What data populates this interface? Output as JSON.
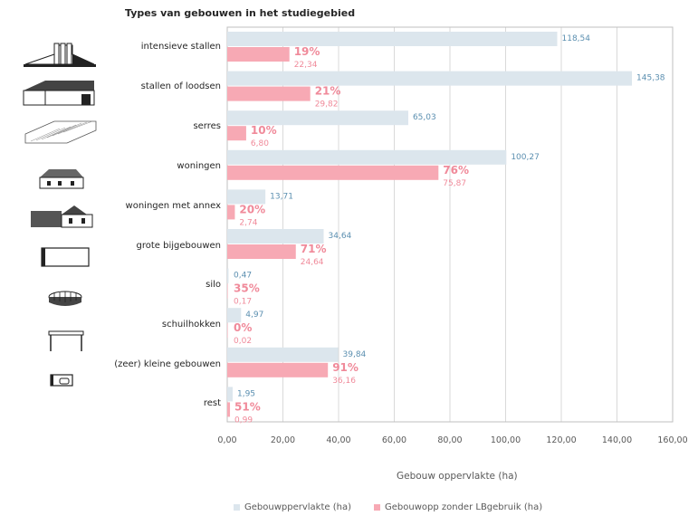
{
  "chart_data": {
    "type": "bar",
    "orientation": "horizontal",
    "title": "Types van gebouwen in het studiegebied",
    "xlabel": "Gebouw oppervlakte (ha)",
    "xlim": [
      0,
      160
    ],
    "xticks": [
      "0,00",
      "20,00",
      "40,00",
      "60,00",
      "80,00",
      "100,00",
      "120,00",
      "140,00",
      "160,00"
    ],
    "grid": true,
    "legend_position": "bottom",
    "categories": [
      "intensieve stallen",
      "stallen of loodsen",
      "serres",
      "woningen",
      "woningen met annex",
      "grote bijgebouwen",
      "silo",
      "schuilhokken",
      "(zeer) kleine gebouwen",
      "rest"
    ],
    "series": [
      {
        "name": "Gebouwppervlakte (ha)",
        "color": "#dce6ed",
        "label_color": "#5b8fb0",
        "values": [
          118.54,
          145.38,
          65.03,
          100.27,
          13.71,
          34.64,
          0.47,
          4.97,
          39.84,
          1.95
        ],
        "labels": [
          "118,54",
          "145,38",
          "65,03",
          "100,27",
          "13,71",
          "34,64",
          "0,47",
          "4,97",
          "39,84",
          "1,95"
        ]
      },
      {
        "name": "Gebouwopp zonder LBgebruik (ha)",
        "color": "#f7a9b4",
        "label_color": "#f08a9a",
        "values": [
          22.34,
          29.82,
          6.8,
          75.87,
          2.74,
          24.64,
          0.17,
          0.02,
          36.16,
          0.99
        ],
        "labels": [
          "22,34",
          "29,82",
          "6,80",
          "75,87",
          "2,74",
          "24,64",
          "0,17",
          "0,02",
          "36,16",
          "0,99"
        ]
      }
    ],
    "percentages": [
      "19%",
      "21%",
      "10%",
      "76%",
      "20%",
      "71%",
      "35%",
      "0%",
      "91%",
      "51%"
    ],
    "percentage_color": "#f08a9a"
  },
  "icons": [
    "intensive-stable-icon",
    "shed-icon",
    "greenhouse-icon",
    "house-icon",
    "house-with-annex-icon",
    "large-outbuilding-icon",
    "silo-icon",
    "shelter-icon",
    "small-building-icon",
    "rest-icon"
  ]
}
